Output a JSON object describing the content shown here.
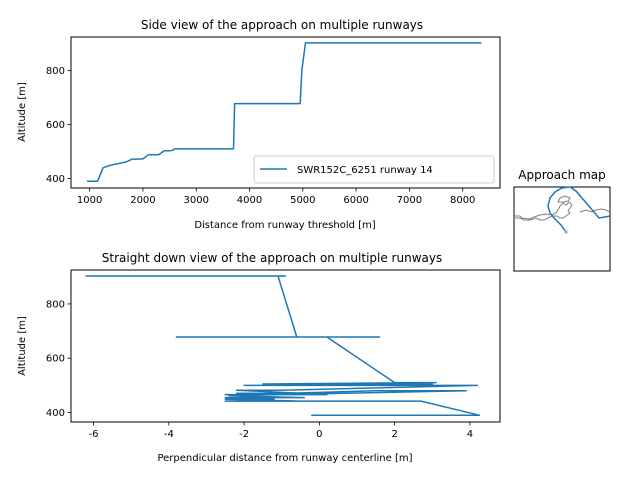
{
  "colors": {
    "series": "#1f77b4",
    "map_coast": "#808080",
    "map_marker": "#aaaaaa"
  },
  "chart_data": [
    {
      "type": "line",
      "title": "Side view of the approach on multiple runways",
      "xlabel": "Distance from runway threshold [m]",
      "ylabel": "Altitude [m]",
      "xlim": [
        650,
        8700
      ],
      "ylim": [
        365,
        925
      ],
      "x_ticks": [
        1000,
        2000,
        3000,
        4000,
        5000,
        6000,
        7000,
        8000
      ],
      "y_ticks": [
        400,
        600,
        800
      ],
      "legend": "lower right",
      "series": [
        {
          "name": "SWR152C_6251 runway 14",
          "x": [
            950,
            1150,
            1250,
            1350,
            1450,
            1550,
            1700,
            1800,
            1850,
            2000,
            2100,
            2200,
            2300,
            2400,
            2500,
            2550,
            2600,
            3700,
            3720,
            4950,
            4980,
            5050,
            8350
          ],
          "y": [
            390,
            390,
            440,
            447,
            452,
            456,
            463,
            472,
            472,
            473,
            488,
            488,
            489,
            503,
            503,
            505,
            510,
            510,
            678,
            678,
            800,
            903,
            903
          ]
        }
      ]
    },
    {
      "type": "line",
      "title": "Straight down view of the approach on multiple runways",
      "xlabel": "Perpendicular distance from runway centerline [m]",
      "ylabel": "Altitude [m]",
      "xlim": [
        -6.6,
        4.8
      ],
      "ylim": [
        365,
        925
      ],
      "x_ticks": [
        -6,
        -4,
        -2,
        0,
        2,
        4
      ],
      "y_ticks": [
        400,
        600,
        800
      ],
      "series": [
        {
          "name": "",
          "x": [
            4.25,
            -0.2,
            1.8,
            4.25,
            2.7,
            -2.5,
            -0.5,
            -2.5,
            -1.2,
            -2.5,
            -0.4,
            -2.4,
            3.9,
            1.5,
            -0.8,
            -2.2,
            -0.3,
            -2.5,
            0.2,
            -2.2,
            -1.0,
            4.2,
            1.0,
            -2.0,
            3.0,
            -1.5,
            3.1,
            2.0,
            0.2,
            -3.8,
            1.6,
            -0.6,
            -1.1,
            -0.9,
            -6.2,
            -5.6
          ],
          "y": [
            390,
            390,
            390,
            390,
            442,
            442,
            442,
            449,
            449,
            455,
            455,
            462,
            480,
            480,
            471,
            471,
            471,
            466,
            466,
            482,
            482,
            500,
            500,
            500,
            505,
            505,
            510,
            510,
            678,
            678,
            678,
            678,
            903,
            903,
            903,
            903
          ]
        }
      ]
    },
    {
      "type": "map",
      "title": "Approach map"
    }
  ]
}
